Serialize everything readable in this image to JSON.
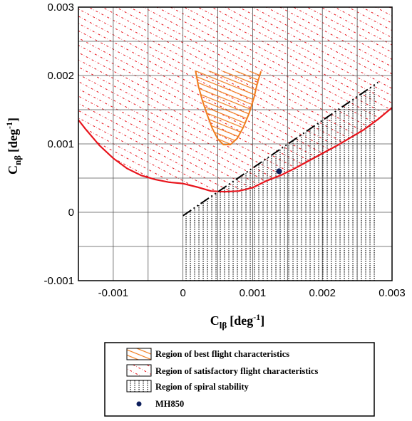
{
  "chart_data": {
    "type": "line",
    "xlabel": {
      "main": "C",
      "sub": "lβ",
      "unit": "[deg",
      "exp": "-1",
      "close": "]"
    },
    "ylabel": {
      "main": "C",
      "sub": "nβ",
      "unit": "[deg",
      "exp": "-1",
      "close": "]"
    },
    "xlim": [
      -0.0015,
      0.003
    ],
    "ylim": [
      -0.001,
      0.003
    ],
    "x_ticks": [
      {
        "v": -0.001,
        "label": "-0.001"
      },
      {
        "v": 0,
        "label": "0"
      },
      {
        "v": 0.001,
        "label": "0.001"
      },
      {
        "v": 0.002,
        "label": "0.002"
      },
      {
        "v": 0.003,
        "label": "0.003"
      }
    ],
    "y_ticks": [
      {
        "v": -0.001,
        "label": "-0.001"
      },
      {
        "v": 0,
        "label": "0"
      },
      {
        "v": 0.001,
        "label": "0.001"
      },
      {
        "v": 0.002,
        "label": "0.002"
      },
      {
        "v": 0.003,
        "label": "0.003"
      }
    ],
    "grid": true,
    "satisfactory_boundary": [
      [
        -0.0015,
        0.00135
      ],
      [
        -0.0014,
        0.00122
      ],
      [
        -0.0012,
        0.00098
      ],
      [
        -0.001,
        0.00079
      ],
      [
        -0.0008,
        0.00064
      ],
      [
        -0.0006,
        0.00054
      ],
      [
        -0.0004,
        0.00048
      ],
      [
        -0.0002,
        0.00044
      ],
      [
        0.0,
        0.00042
      ],
      [
        0.0002,
        0.00037
      ],
      [
        0.0004,
        0.00031
      ],
      [
        0.0006,
        0.0003
      ],
      [
        0.0008,
        0.00031
      ],
      [
        0.001,
        0.00036
      ],
      [
        0.0012,
        0.00046
      ],
      [
        0.0014,
        0.00054
      ],
      [
        0.0016,
        0.00064
      ],
      [
        0.0018,
        0.00075
      ],
      [
        0.002,
        0.00086
      ],
      [
        0.0022,
        0.00097
      ],
      [
        0.0024,
        0.00109
      ],
      [
        0.0026,
        0.00121
      ],
      [
        0.0028,
        0.00136
      ],
      [
        0.003,
        0.00153
      ]
    ],
    "best_region_boundary": [
      [
        0.00018,
        0.00207
      ],
      [
        0.00022,
        0.00185
      ],
      [
        0.00028,
        0.00163
      ],
      [
        0.00035,
        0.00142
      ],
      [
        0.00042,
        0.00123
      ],
      [
        0.0005,
        0.00107
      ],
      [
        0.00058,
        0.00099
      ],
      [
        0.00068,
        0.00099
      ],
      [
        0.00078,
        0.00108
      ],
      [
        0.00087,
        0.00125
      ],
      [
        0.00095,
        0.00145
      ],
      [
        0.00102,
        0.00168
      ],
      [
        0.00107,
        0.0019
      ],
      [
        0.00112,
        0.00206
      ]
    ],
    "spiral_boundary": [
      [
        0.0,
        -5e-05
      ],
      [
        0.0028,
        0.0019
      ]
    ],
    "point": {
      "name": "MH850",
      "x": 0.00138,
      "y": 0.0006
    },
    "legend": {
      "placement": "bottom",
      "entries": [
        {
          "label": "Region of best flight characteristics",
          "pattern": "orange-hatch"
        },
        {
          "label": "Region of satisfactory flight characteristics",
          "pattern": "red-hatch"
        },
        {
          "label": "Region of spiral stability",
          "pattern": "dotted-vertical"
        },
        {
          "label": "MH850",
          "pattern": "dot"
        }
      ]
    },
    "colors": {
      "satisfactory": "#e8141c",
      "best": "#f07d1e",
      "point": "#0d1f5c",
      "grid": "#555555",
      "spiral": "#000000"
    }
  }
}
